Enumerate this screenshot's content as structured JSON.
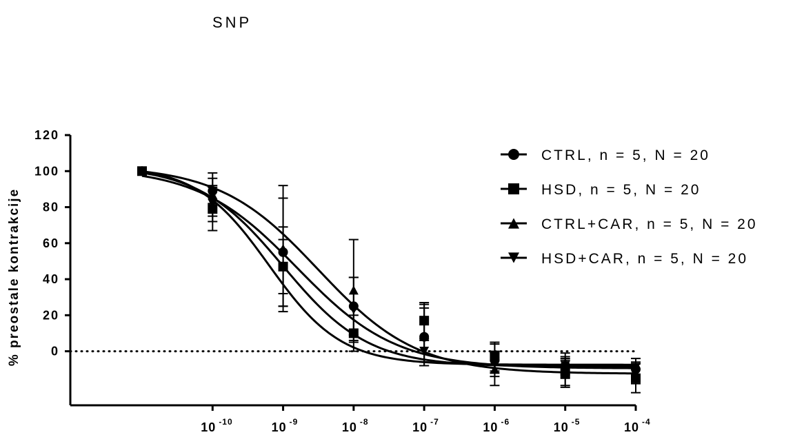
{
  "chart_data": {
    "type": "line",
    "title": "SNP",
    "ylabel": "% preostale kontrakcije",
    "xlabel": "",
    "x_scale": "log",
    "x_tick_values": [
      1e-10,
      1e-09,
      1e-08,
      1e-07,
      1e-06,
      1e-05,
      0.0001
    ],
    "x_tick_labels": [
      {
        "base": "10",
        "exp": "-10"
      },
      {
        "base": "10",
        "exp": "-9"
      },
      {
        "base": "10",
        "exp": "-8"
      },
      {
        "base": "10",
        "exp": "-7"
      },
      {
        "base": "10",
        "exp": "-6"
      },
      {
        "base": "10",
        "exp": "-5"
      },
      {
        "base": "10",
        "exp": "-4"
      }
    ],
    "y_ticks": [
      0,
      20,
      40,
      60,
      80,
      100,
      120
    ],
    "ylim": [
      -30,
      120
    ],
    "reference_line": 0,
    "legend_position": "top-right",
    "grid": false,
    "series": [
      {
        "name": "CTRL, n = 5, N = 20",
        "marker": "circle",
        "x": [
          1e-11,
          1e-10,
          1e-09,
          1e-08,
          1e-07,
          1e-06,
          1e-05,
          0.0001
        ],
        "y": [
          100,
          89,
          55,
          25,
          8,
          -5,
          -8,
          -10
        ],
        "err": [
          0,
          7,
          30,
          16,
          16,
          9,
          7,
          6
        ]
      },
      {
        "name": "HSD, n = 5, N = 20",
        "marker": "square",
        "x": [
          1e-11,
          1e-10,
          1e-09,
          1e-08,
          1e-07,
          1e-06,
          1e-05,
          0.0001
        ],
        "y": [
          100,
          79,
          47,
          10,
          17,
          -3,
          -12,
          -15
        ],
        "err": [
          0,
          12,
          15,
          10,
          10,
          8,
          8,
          8
        ]
      },
      {
        "name": "CTRL+CAR, n = 5, N = 20",
        "marker": "triangle-up",
        "x": [
          1e-11,
          1e-10,
          1e-09,
          1e-08,
          1e-07,
          1e-06,
          1e-05,
          0.0001
        ],
        "y": [
          100,
          87,
          57,
          34,
          9,
          -10,
          -12,
          -12
        ],
        "err": [
          0,
          12,
          35,
          28,
          17,
          9,
          7,
          6
        ]
      },
      {
        "name": "HSD+CAR, n = 5, N = 20",
        "marker": "triangle-down",
        "x": [
          1e-11,
          1e-10,
          1e-09,
          1e-08,
          1e-07,
          1e-06,
          1e-05,
          0.0001
        ],
        "y": [
          100,
          82,
          47,
          23,
          0,
          -6,
          -8,
          -9
        ],
        "err": [
          0,
          10,
          22,
          18,
          6,
          6,
          5,
          5
        ]
      }
    ],
    "curve_fit": {
      "type": "sigmoidal",
      "parameters": [
        {
          "top": 102,
          "bottom": -9.5,
          "logEC50": -8.8,
          "hill": 0.62
        },
        {
          "top": 103,
          "bottom": -7.5,
          "logEC50": -9.2,
          "hill": 0.85
        },
        {
          "top": 103,
          "bottom": -12.5,
          "logEC50": -8.5,
          "hill": 0.62
        },
        {
          "top": 103,
          "bottom": -8.5,
          "logEC50": -9.0,
          "hill": 0.72
        }
      ]
    }
  }
}
